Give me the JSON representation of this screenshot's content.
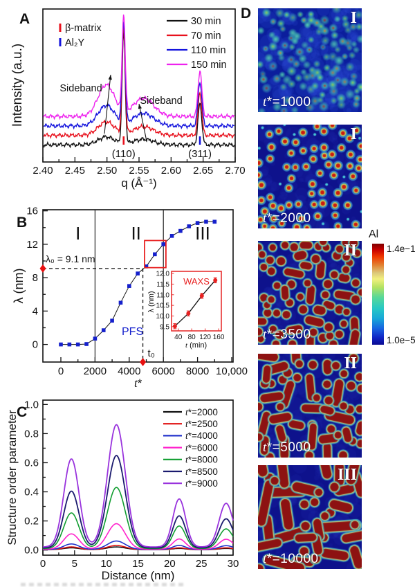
{
  "panels": {
    "a": "A",
    "b": "B",
    "c": "C",
    "d": "D"
  },
  "chart_data": [
    {
      "id": "A",
      "type": "line",
      "xlabel": "q (Å⁻¹)",
      "ylabel": "Intensity (a.u.)",
      "xlim": [
        2.4,
        2.7
      ],
      "xticks": [
        2.4,
        2.45,
        2.5,
        2.55,
        2.6,
        2.65,
        2.7
      ],
      "xtick_labels": [
        "2.40",
        "2.45",
        "2.50",
        "2.55",
        "2.60",
        "2.65",
        "2.70"
      ],
      "legend": [
        {
          "name": "30 min",
          "color": "#111111"
        },
        {
          "name": "70 min",
          "color": "#e8111d"
        },
        {
          "name": "110 min",
          "color": "#1414dd"
        },
        {
          "name": "150 min",
          "color": "#ee22ee"
        }
      ],
      "phase_markers": [
        {
          "label": "β-matrix",
          "color": "#e8111d"
        },
        {
          "label": "Al₂Y",
          "color": "#1414dd"
        }
      ],
      "peak_labels": [
        {
          "text": "(110)",
          "q": 2.526,
          "tick_color": "#e8111d"
        },
        {
          "text": "(311)",
          "q": 2.645,
          "tick_color": "#1414dd"
        }
      ],
      "sideband_label": "Sideband",
      "peaks": {
        "main_q": 2.526,
        "main_w": 0.0024,
        "sec_q": 2.645,
        "sec_w": 0.003,
        "sb1_q": 2.499,
        "sb1_w": 0.013,
        "sb2_q": 2.557,
        "sb2_w": 0.016
      },
      "series_params": [
        {
          "name": "30 min",
          "color": "#111111",
          "offset": 10,
          "sb1": 5,
          "sb2": 3.5,
          "main": 70,
          "sec": 26
        },
        {
          "name": "70 min",
          "color": "#e8111d",
          "offset": 16,
          "sb1": 8.5,
          "sb2": 5.5,
          "main": 67,
          "sec": 27
        },
        {
          "name": "110 min",
          "color": "#1414dd",
          "offset": 22,
          "sb1": 13,
          "sb2": 8,
          "main": 64,
          "sec": 28
        },
        {
          "name": "150 min",
          "color": "#ee22ee",
          "offset": 28,
          "sb1": 20,
          "sb2": 11.5,
          "main": 61,
          "sec": 29
        }
      ]
    },
    {
      "id": "B",
      "type": "scatter-line",
      "xlabel": "t*",
      "ylabel": "λ (nm)",
      "xlim": [
        0,
        10000
      ],
      "ylim": [
        0,
        16
      ],
      "xticks": [
        0,
        2000,
        4000,
        6000,
        8000,
        10000
      ],
      "xtick_labels": [
        "0",
        "2000",
        "4000",
        "6000",
        "8000",
        "10,000"
      ],
      "yticks": [
        0,
        4,
        8,
        12,
        16
      ],
      "marker_color": "#1520cc",
      "points": [
        [
          0,
          0
        ],
        [
          500,
          0
        ],
        [
          1000,
          0
        ],
        [
          1500,
          0.05
        ],
        [
          2000,
          0.7
        ],
        [
          2500,
          1.7
        ],
        [
          3000,
          2.85
        ],
        [
          3500,
          5.0
        ],
        [
          4000,
          7.0
        ],
        [
          4500,
          8.5
        ],
        [
          5000,
          9.35
        ],
        [
          5500,
          10.8
        ],
        [
          6000,
          12.0
        ],
        [
          6500,
          13.0
        ],
        [
          7000,
          13.6
        ],
        [
          7500,
          14.15
        ],
        [
          8000,
          14.55
        ],
        [
          8500,
          14.7
        ],
        [
          9000,
          14.7
        ]
      ],
      "region_boundaries": [
        2000,
        6000
      ],
      "region_labels": [
        {
          "text": "I",
          "x": 1000,
          "y": 13.3
        },
        {
          "text": "II",
          "x": 4400,
          "y": 13.3
        },
        {
          "text": "III",
          "x": 8300,
          "y": 13.3
        }
      ],
      "lambda0": 9.1,
      "lambda0_label": "λ₀ = 9.1 nm",
      "t0": 4800,
      "t0_label": "t₀",
      "pfs_label": "PFS",
      "highlight_box": {
        "x1": 4900,
        "x2": 6150,
        "y1": 9.2,
        "y2": 12.45
      },
      "inset": {
        "title": "WAXS",
        "title_color": "#e82020",
        "xlabel": "t (min)",
        "ylabel": "λ (nm)",
        "xlim": [
          20,
          168
        ],
        "ylim": [
          9.3,
          12.1
        ],
        "xticks": [
          40,
          80,
          120,
          160
        ],
        "yticks": [
          9.5,
          10.0,
          10.5,
          11.0,
          11.5,
          12.0
        ],
        "ytick_labels": [
          "9.5",
          "10.0",
          "10.5",
          "11.0",
          "11.5",
          "12.0"
        ],
        "points": [
          [
            30,
            9.52
          ],
          [
            70,
            10.12
          ],
          [
            110,
            10.95
          ],
          [
            150,
            11.68
          ]
        ],
        "err": 0.12,
        "point_color": "#e82020"
      }
    },
    {
      "id": "C",
      "type": "line",
      "xlabel": "Distance (nm)",
      "ylabel": "Structure order parameter",
      "xlim": [
        0,
        30
      ],
      "ylim": [
        0,
        1.0
      ],
      "xticks": [
        0,
        5,
        10,
        15,
        20,
        25,
        30
      ],
      "yticks": [
        0.0,
        0.2,
        0.4,
        0.6,
        0.8,
        1.0
      ],
      "ytick_labels": [
        "0.0",
        "0.2",
        "0.4",
        "0.6",
        "0.8",
        "1.0"
      ],
      "peak_centers": [
        4.5,
        11.6,
        21.5,
        28.9
      ],
      "peak_sigmas": [
        1.2,
        1.4,
        1.0,
        1.1
      ],
      "series": [
        {
          "name": "t*=2000",
          "color": "#111111",
          "peaks": [
            0.012,
            0.018,
            0.008,
            0.008
          ]
        },
        {
          "name": "t*=2500",
          "color": "#e01111",
          "peaks": [
            0.018,
            0.028,
            0.012,
            0.012
          ]
        },
        {
          "name": "t*=4000",
          "color": "#2233cc",
          "peaks": [
            0.038,
            0.058,
            0.028,
            0.026
          ]
        },
        {
          "name": "t*=6000",
          "color": "#ff22cc",
          "peaks": [
            0.105,
            0.175,
            0.07,
            0.068
          ]
        },
        {
          "name": "t*=8000",
          "color": "#0f9d2f",
          "peaks": [
            0.245,
            0.42,
            0.155,
            0.135
          ]
        },
        {
          "name": "t*=8500",
          "color": "#1a1a6e",
          "peaks": [
            0.39,
            0.635,
            0.22,
            0.2
          ]
        },
        {
          "name": "t*=9000",
          "color": "#9933dd",
          "peaks": [
            0.605,
            0.84,
            0.33,
            0.3
          ]
        }
      ]
    }
  ],
  "panel_d": {
    "label": "D",
    "colorbar": {
      "title": "Al",
      "max_label": "1.4e−1",
      "min_label": "1.0e−5"
    },
    "images": [
      {
        "time_label": "t*=1000",
        "stage": "I",
        "pattern": {
          "style": "glow",
          "count": 115,
          "seed": 7,
          "rmin": 1.7,
          "rmax": 2.6,
          "elong": 0,
          "lenMin": 0,
          "lenMax": 0,
          "sepf": 1.0,
          "gap": 3
        }
      },
      {
        "time_label": "t*=2000",
        "stage": "I",
        "pattern": {
          "style": "ring",
          "count": 80,
          "seed": 11,
          "rmin": 4.0,
          "rmax": 5.0,
          "elong": 0,
          "lenMin": 0,
          "lenMax": 0,
          "sepf": 1.0,
          "gap": 2.5
        }
      },
      {
        "time_label": "t*=3500",
        "stage": "II",
        "pattern": {
          "style": "blob",
          "count": 72,
          "seed": 23,
          "rmin": 4.6,
          "rmax": 6.2,
          "elong": 0.32,
          "lenMin": 5,
          "lenMax": 20,
          "sepf": 0.7,
          "gap": 2
        }
      },
      {
        "time_label": "t*=5000",
        "stage": "II",
        "pattern": {
          "style": "blob",
          "count": 54,
          "seed": 31,
          "rmin": 5.0,
          "rmax": 6.2,
          "elong": 0.58,
          "lenMin": 8,
          "lenMax": 34,
          "sepf": 0.55,
          "gap": 2.5
        }
      },
      {
        "time_label": "t*=10000",
        "stage": "III",
        "pattern": {
          "style": "blob",
          "count": 38,
          "seed": 47,
          "rmin": 5.4,
          "rmax": 6.8,
          "elong": 0.78,
          "lenMin": 16,
          "lenMax": 58,
          "sepf": 0.45,
          "gap": 2.5
        }
      }
    ]
  }
}
